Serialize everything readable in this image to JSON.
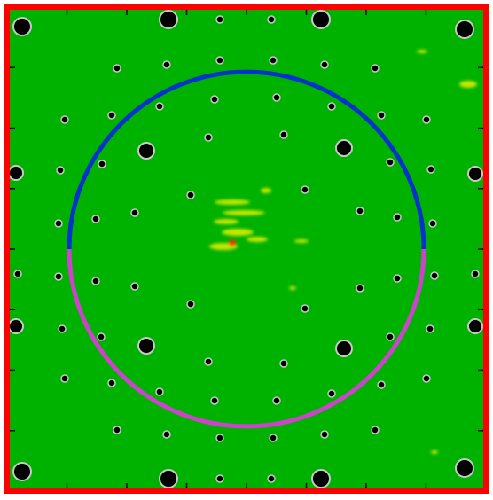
{
  "colors": {
    "background": "#00b200",
    "border": "#ff0000",
    "hole_fill": "#000000",
    "hole_ring": "#c8c8c8",
    "upper_arc": "#0033cc",
    "lower_arc": "#cc44cc",
    "hotspot_yellow": "#e6f000",
    "hotspot_red": "#ff2a00",
    "tick": "#000000"
  },
  "diagram": {
    "ticks_per_side": 8
  }
}
